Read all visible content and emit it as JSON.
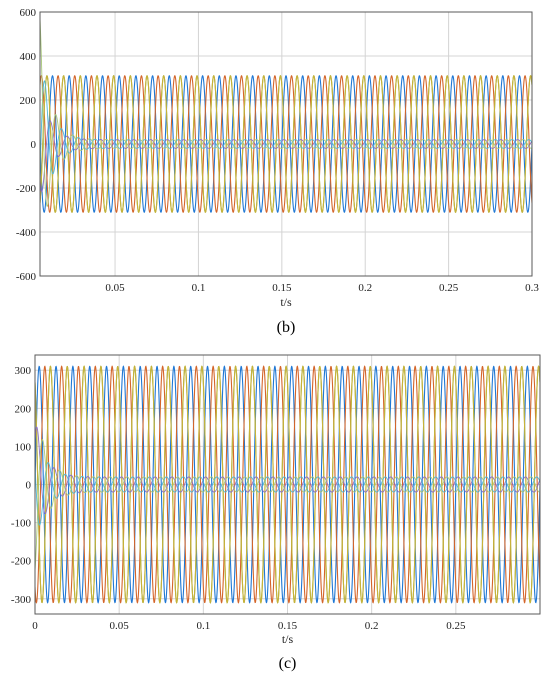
{
  "chart_data": [
    {
      "type": "line",
      "panel_label": "(b)",
      "xlabel": "t/s",
      "ylabel": "",
      "xlim": [
        0.005,
        0.3
      ],
      "ylim": [
        -600,
        600
      ],
      "xticks": [
        0.05,
        0.1,
        0.15,
        0.2,
        0.25,
        0.3
      ],
      "xtick_labels": [
        "0.05",
        "0.1",
        "0.15",
        "0.2",
        "0.25",
        "0.3"
      ],
      "yticks": [
        -600,
        -400,
        -200,
        0,
        200,
        400,
        600
      ],
      "ytick_labels": [
        "-600",
        "-400",
        "-200",
        "0",
        "200",
        "400",
        "600"
      ],
      "grid": true,
      "series": [
        {
          "color": "#1f77d4",
          "kind": "voltage",
          "amplitude": 310,
          "frequency_hz": 100,
          "phase_deg": 0
        },
        {
          "color": "#d4652a",
          "kind": "voltage",
          "amplitude": 310,
          "frequency_hz": 100,
          "phase_deg": -120
        },
        {
          "color": "#86b03a",
          "kind": "voltage",
          "amplitude": 310,
          "frequency_hz": 100,
          "phase_deg": 120
        },
        {
          "color": "#c8b23a",
          "kind": "voltage",
          "amplitude": 310,
          "frequency_hz": 100,
          "phase_deg": 120
        },
        {
          "color": "#8a6fc4",
          "kind": "current",
          "amplitude": 20,
          "frequency_hz": 100,
          "phase_deg": 40,
          "transient_peak": 260
        },
        {
          "color": "#4fb8d6",
          "kind": "current",
          "amplitude": 20,
          "frequency_hz": 100,
          "phase_deg": 160,
          "transient_peak": 450
        },
        {
          "color": "#a8c87a",
          "kind": "current",
          "amplitude": 20,
          "frequency_hz": 100,
          "phase_deg": -80,
          "transient_peak": 580
        }
      ]
    },
    {
      "type": "line",
      "panel_label": "(c)",
      "xlabel": "t/s",
      "ylabel": "",
      "xlim": [
        0,
        0.3
      ],
      "ylim": [
        -340,
        340
      ],
      "xticks": [
        0,
        0.05,
        0.1,
        0.15,
        0.2,
        0.25
      ],
      "xtick_labels": [
        "0",
        "0.05",
        "0.1",
        "0.15",
        "0.2",
        "0.25"
      ],
      "yticks": [
        -300,
        -200,
        -100,
        0,
        100,
        200,
        300
      ],
      "ytick_labels": [
        "-300",
        "-200",
        "-100",
        "0",
        "100",
        "200",
        "300"
      ],
      "grid": true,
      "series": [
        {
          "color": "#1f77d4",
          "kind": "voltage",
          "amplitude": 310,
          "frequency_hz": 100,
          "phase_deg": 0
        },
        {
          "color": "#d4652a",
          "kind": "voltage",
          "amplitude": 310,
          "frequency_hz": 100,
          "phase_deg": -120
        },
        {
          "color": "#86b03a",
          "kind": "voltage",
          "amplitude": 310,
          "frequency_hz": 100,
          "phase_deg": 120
        },
        {
          "color": "#c8b23a",
          "kind": "voltage",
          "amplitude": 310,
          "frequency_hz": 100,
          "phase_deg": 120
        },
        {
          "color": "#8a6fc4",
          "kind": "current",
          "amplitude": 20,
          "frequency_hz": 100,
          "phase_deg": 40,
          "transient_peak": 180
        },
        {
          "color": "#4fb8d6",
          "kind": "current",
          "amplitude": 20,
          "frequency_hz": 100,
          "phase_deg": 160,
          "transient_peak": 160
        },
        {
          "color": "#a8c87a",
          "kind": "current",
          "amplitude": 20,
          "frequency_hz": 100,
          "phase_deg": -80,
          "transient_peak": 230
        }
      ]
    }
  ]
}
